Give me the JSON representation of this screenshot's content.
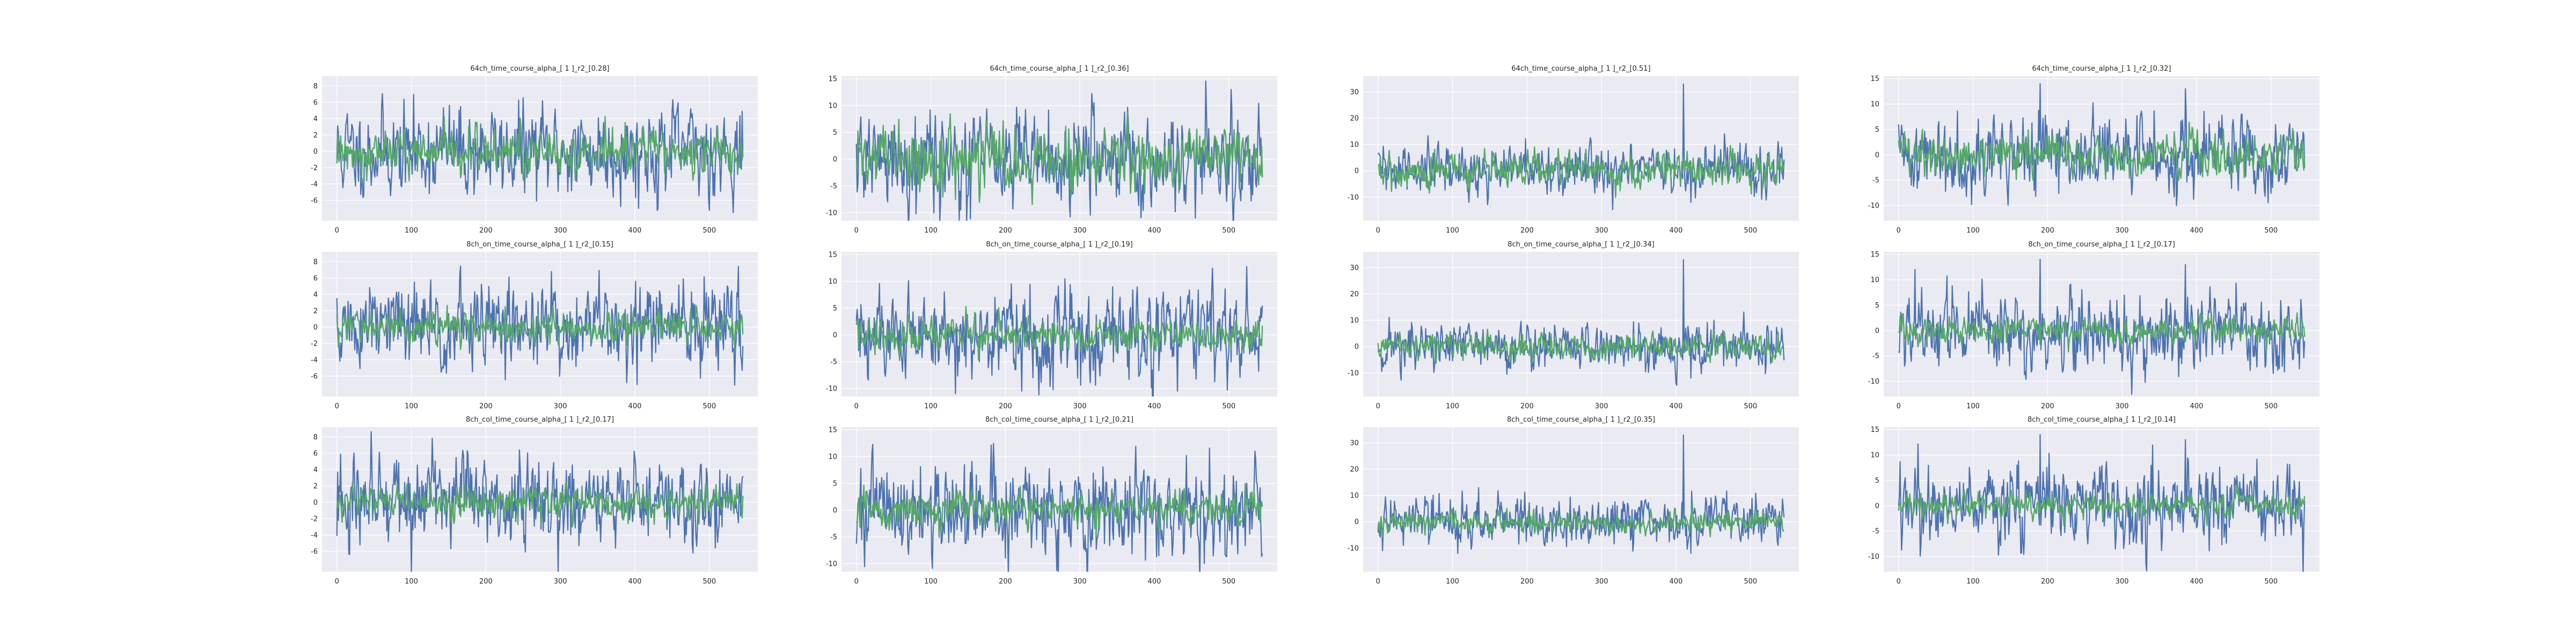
{
  "chart_data": [
    {
      "type": "line",
      "title": "64ch_time_course_alpha_[ 1 ]_r2_[0.28]",
      "xlim": [
        -20,
        565
      ],
      "ylim": [
        -8.5,
        9.2
      ],
      "xticks": [
        0,
        100,
        200,
        300,
        400,
        500
      ],
      "yticks": [
        -6,
        -4,
        -2,
        0,
        2,
        4,
        6,
        8
      ],
      "grid": true,
      "series": [
        {
          "color": "#4c72b0",
          "amplitude": 2.6,
          "seed": 11
        },
        {
          "color": "#55a868",
          "amplitude": 1.3,
          "seed": 12
        }
      ]
    },
    {
      "type": "line",
      "title": "64ch_time_course_alpha_[ 1 ]_r2_[0.36]",
      "xlim": [
        -20,
        565
      ],
      "ylim": [
        -11.5,
        15.5
      ],
      "xticks": [
        0,
        100,
        200,
        300,
        400,
        500
      ],
      "yticks": [
        -10,
        -5,
        0,
        5,
        10,
        15
      ],
      "grid": true,
      "series": [
        {
          "color": "#4c72b0",
          "amplitude": 4.2,
          "seed": 21
        },
        {
          "color": "#55a868",
          "amplitude": 2.6,
          "seed": 22
        }
      ]
    },
    {
      "type": "line",
      "title": "64ch_time_course_alpha_[ 1 ]_r2_[0.51]",
      "xlim": [
        -20,
        565
      ],
      "ylim": [
        -19,
        36
      ],
      "xticks": [
        0,
        100,
        200,
        300,
        400,
        500
      ],
      "yticks": [
        -10,
        0,
        10,
        20,
        30
      ],
      "grid": true,
      "series": [
        {
          "color": "#4c72b0",
          "amplitude": 4.5,
          "seed": 31,
          "spikes": [
            [
              410,
              33
            ],
            [
              420,
              -12
            ]
          ]
        },
        {
          "color": "#55a868",
          "amplitude": 3.2,
          "seed": 32
        }
      ]
    },
    {
      "type": "line",
      "title": "64ch_time_course_alpha_[ 1 ]_r2_[0.32]",
      "xlim": [
        -20,
        565
      ],
      "ylim": [
        -13,
        15.5
      ],
      "xticks": [
        0,
        100,
        200,
        300,
        400,
        500
      ],
      "yticks": [
        -10,
        -5,
        0,
        5,
        10,
        15
      ],
      "grid": true,
      "series": [
        {
          "color": "#4c72b0",
          "amplitude": 3.6,
          "seed": 41,
          "spikes": [
            [
              190,
              14
            ],
            [
              385,
              13
            ]
          ]
        },
        {
          "color": "#55a868",
          "amplitude": 2.0,
          "seed": 42
        }
      ]
    },
    {
      "type": "line",
      "title": "8ch_on_time_course_alpha_[ 1 ]_r2_[0.15]",
      "xlim": [
        -20,
        565
      ],
      "ylim": [
        -8.5,
        9.2
      ],
      "xticks": [
        0,
        100,
        200,
        300,
        400,
        500
      ],
      "yticks": [
        -6,
        -4,
        -2,
        0,
        2,
        4,
        6,
        8
      ],
      "grid": true,
      "series": [
        {
          "color": "#4c72b0",
          "amplitude": 2.6,
          "seed": 51
        },
        {
          "color": "#55a868",
          "amplitude": 0.9,
          "seed": 52
        }
      ]
    },
    {
      "type": "line",
      "title": "8ch_on_time_course_alpha_[ 1 ]_r2_[0.19]",
      "xlim": [
        -20,
        565
      ],
      "ylim": [
        -11.5,
        15.5
      ],
      "xticks": [
        0,
        100,
        200,
        300,
        400,
        500
      ],
      "yticks": [
        -10,
        -5,
        0,
        5,
        10,
        15
      ],
      "grid": true,
      "series": [
        {
          "color": "#4c72b0",
          "amplitude": 4.2,
          "seed": 61
        },
        {
          "color": "#55a868",
          "amplitude": 1.4,
          "seed": 62
        }
      ]
    },
    {
      "type": "line",
      "title": "8ch_on_time_course_alpha_[ 1 ]_r2_[0.34]",
      "xlim": [
        -20,
        565
      ],
      "ylim": [
        -19,
        36
      ],
      "xticks": [
        0,
        100,
        200,
        300,
        400,
        500
      ],
      "yticks": [
        -10,
        0,
        10,
        20,
        30
      ],
      "grid": true,
      "series": [
        {
          "color": "#4c72b0",
          "amplitude": 4.5,
          "seed": 71,
          "spikes": [
            [
              410,
              33
            ],
            [
              420,
              -12
            ]
          ]
        },
        {
          "color": "#55a868",
          "amplitude": 2.2,
          "seed": 72
        }
      ]
    },
    {
      "type": "line",
      "title": "8ch_on_time_course_alpha_[ 1 ]_r2_[0.17]",
      "xlim": [
        -20,
        565
      ],
      "ylim": [
        -13,
        15.5
      ],
      "xticks": [
        0,
        100,
        200,
        300,
        400,
        500
      ],
      "yticks": [
        -10,
        -5,
        0,
        5,
        10,
        15
      ],
      "grid": true,
      "series": [
        {
          "color": "#4c72b0",
          "amplitude": 3.6,
          "seed": 81,
          "spikes": [
            [
              190,
              14
            ],
            [
              385,
              13
            ]
          ]
        },
        {
          "color": "#55a868",
          "amplitude": 1.2,
          "seed": 82
        }
      ]
    },
    {
      "type": "line",
      "title": "8ch_col_time_course_alpha_[ 1 ]_r2_[0.17]",
      "xlim": [
        -20,
        565
      ],
      "ylim": [
        -8.5,
        9.2
      ],
      "xticks": [
        0,
        100,
        200,
        300,
        400,
        500
      ],
      "yticks": [
        -6,
        -4,
        -2,
        0,
        2,
        4,
        6,
        8
      ],
      "grid": true,
      "series": [
        {
          "color": "#4c72b0",
          "amplitude": 2.6,
          "seed": 91
        },
        {
          "color": "#55a868",
          "amplitude": 0.9,
          "seed": 92
        }
      ]
    },
    {
      "type": "line",
      "title": "8ch_col_time_course_alpha_[ 1 ]_r2_[0.21]",
      "xlim": [
        -20,
        565
      ],
      "ylim": [
        -11.5,
        15.5
      ],
      "xticks": [
        0,
        100,
        200,
        300,
        400,
        500
      ],
      "yticks": [
        -10,
        -5,
        0,
        5,
        10,
        15
      ],
      "grid": true,
      "series": [
        {
          "color": "#4c72b0",
          "amplitude": 4.2,
          "seed": 101
        },
        {
          "color": "#55a868",
          "amplitude": 1.5,
          "seed": 102
        }
      ]
    },
    {
      "type": "line",
      "title": "8ch_col_time_course_alpha_[ 1 ]_r2_[0.35]",
      "xlim": [
        -20,
        565
      ],
      "ylim": [
        -19,
        36
      ],
      "xticks": [
        0,
        100,
        200,
        300,
        400,
        500
      ],
      "yticks": [
        -10,
        0,
        10,
        20,
        30
      ],
      "grid": true,
      "series": [
        {
          "color": "#4c72b0",
          "amplitude": 4.5,
          "seed": 111,
          "spikes": [
            [
              410,
              33
            ],
            [
              420,
              -12
            ]
          ]
        },
        {
          "color": "#55a868",
          "amplitude": 2.0,
          "seed": 112
        }
      ]
    },
    {
      "type": "line",
      "title": "8ch_col_time_course_alpha_[ 1 ]_r2_[0.14]",
      "xlim": [
        -20,
        565
      ],
      "ylim": [
        -13,
        15.5
      ],
      "xticks": [
        0,
        100,
        200,
        300,
        400,
        500
      ],
      "yticks": [
        -10,
        -5,
        0,
        5,
        10,
        15
      ],
      "grid": true,
      "series": [
        {
          "color": "#4c72b0",
          "amplitude": 3.6,
          "seed": 121,
          "spikes": [
            [
              190,
              14
            ],
            [
              385,
              13
            ]
          ]
        },
        {
          "color": "#55a868",
          "amplitude": 1.1,
          "seed": 122
        }
      ]
    }
  ]
}
